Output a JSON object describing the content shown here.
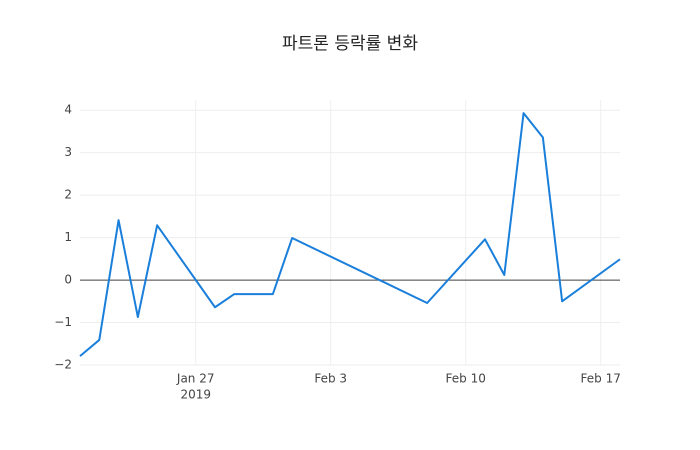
{
  "chart_data": {
    "type": "line",
    "title": "파트론 등락률 변화",
    "x": [
      "2019-01-21",
      "2019-01-22",
      "2019-01-23",
      "2019-01-24",
      "2019-01-25",
      "2019-01-28",
      "2019-01-29",
      "2019-01-30",
      "2019-01-31",
      "2019-02-01",
      "2019-02-08",
      "2019-02-11",
      "2019-02-12",
      "2019-02-13",
      "2019-02-14",
      "2019-02-15",
      "2019-02-18"
    ],
    "series": [
      {
        "color": "#1a7fdb",
        "values": [
          -1.79,
          -1.41,
          1.41,
          -0.87,
          1.29,
          -0.64,
          -0.33,
          -0.33,
          -0.33,
          0.99,
          -0.54,
          0.96,
          0.12,
          3.93,
          3.36,
          -0.5,
          0.49
        ]
      }
    ],
    "xlim": [
      "2019-01-21",
      "2019-02-18"
    ],
    "xticks": [
      {
        "value": "2019-01-27",
        "label": "Jan 27"
      },
      {
        "value": "2019-02-03",
        "label": "Feb 3"
      },
      {
        "value": "2019-02-10",
        "label": "Feb 10"
      },
      {
        "value": "2019-02-17",
        "label": "Feb 17"
      }
    ],
    "x_year_label": "2019",
    "ylim": [
      -2,
      4.24
    ],
    "yticks": [
      {
        "value": -2,
        "label": "−2"
      },
      {
        "value": -1,
        "label": "−1"
      },
      0,
      1,
      2,
      3,
      4
    ],
    "grid": true,
    "zeroline": true
  }
}
